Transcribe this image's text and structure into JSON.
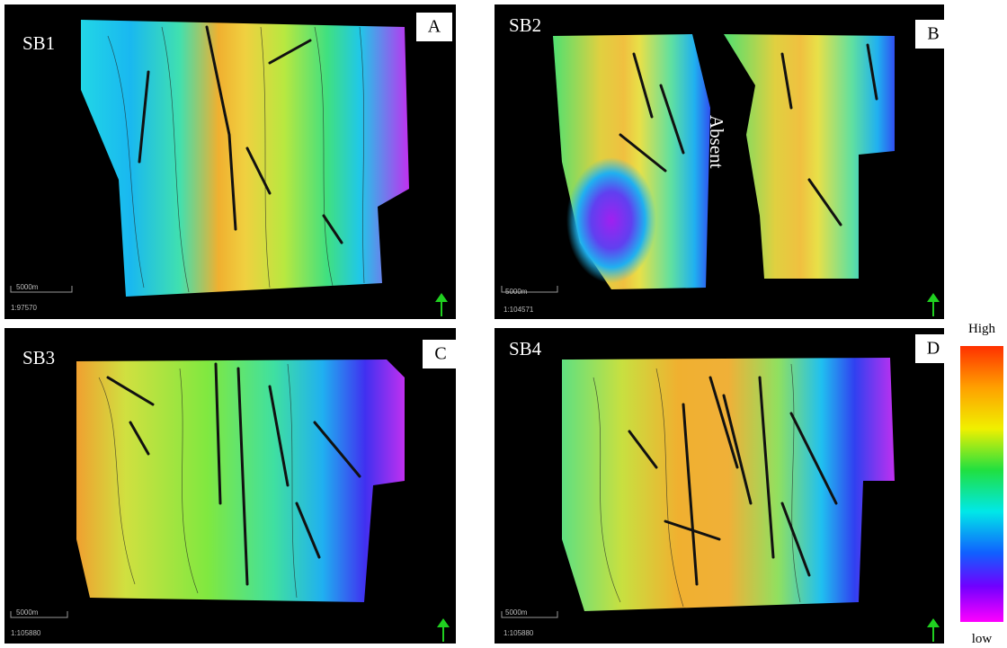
{
  "panels": [
    {
      "name": "SB1",
      "letter": "A",
      "scale_bar": "5000m",
      "scale_ratio": "1:97570"
    },
    {
      "name": "SB2",
      "letter": "B",
      "annotation": "Absent",
      "scale_bar": "5000m",
      "scale_ratio": "1:104571"
    },
    {
      "name": "SB3",
      "letter": "C",
      "scale_bar": "5000m",
      "scale_ratio": "1:105880"
    },
    {
      "name": "SB4",
      "letter": "D",
      "scale_bar": "5000m",
      "scale_ratio": "1:105880"
    }
  ],
  "legend": {
    "high": "High",
    "low": "low"
  }
}
